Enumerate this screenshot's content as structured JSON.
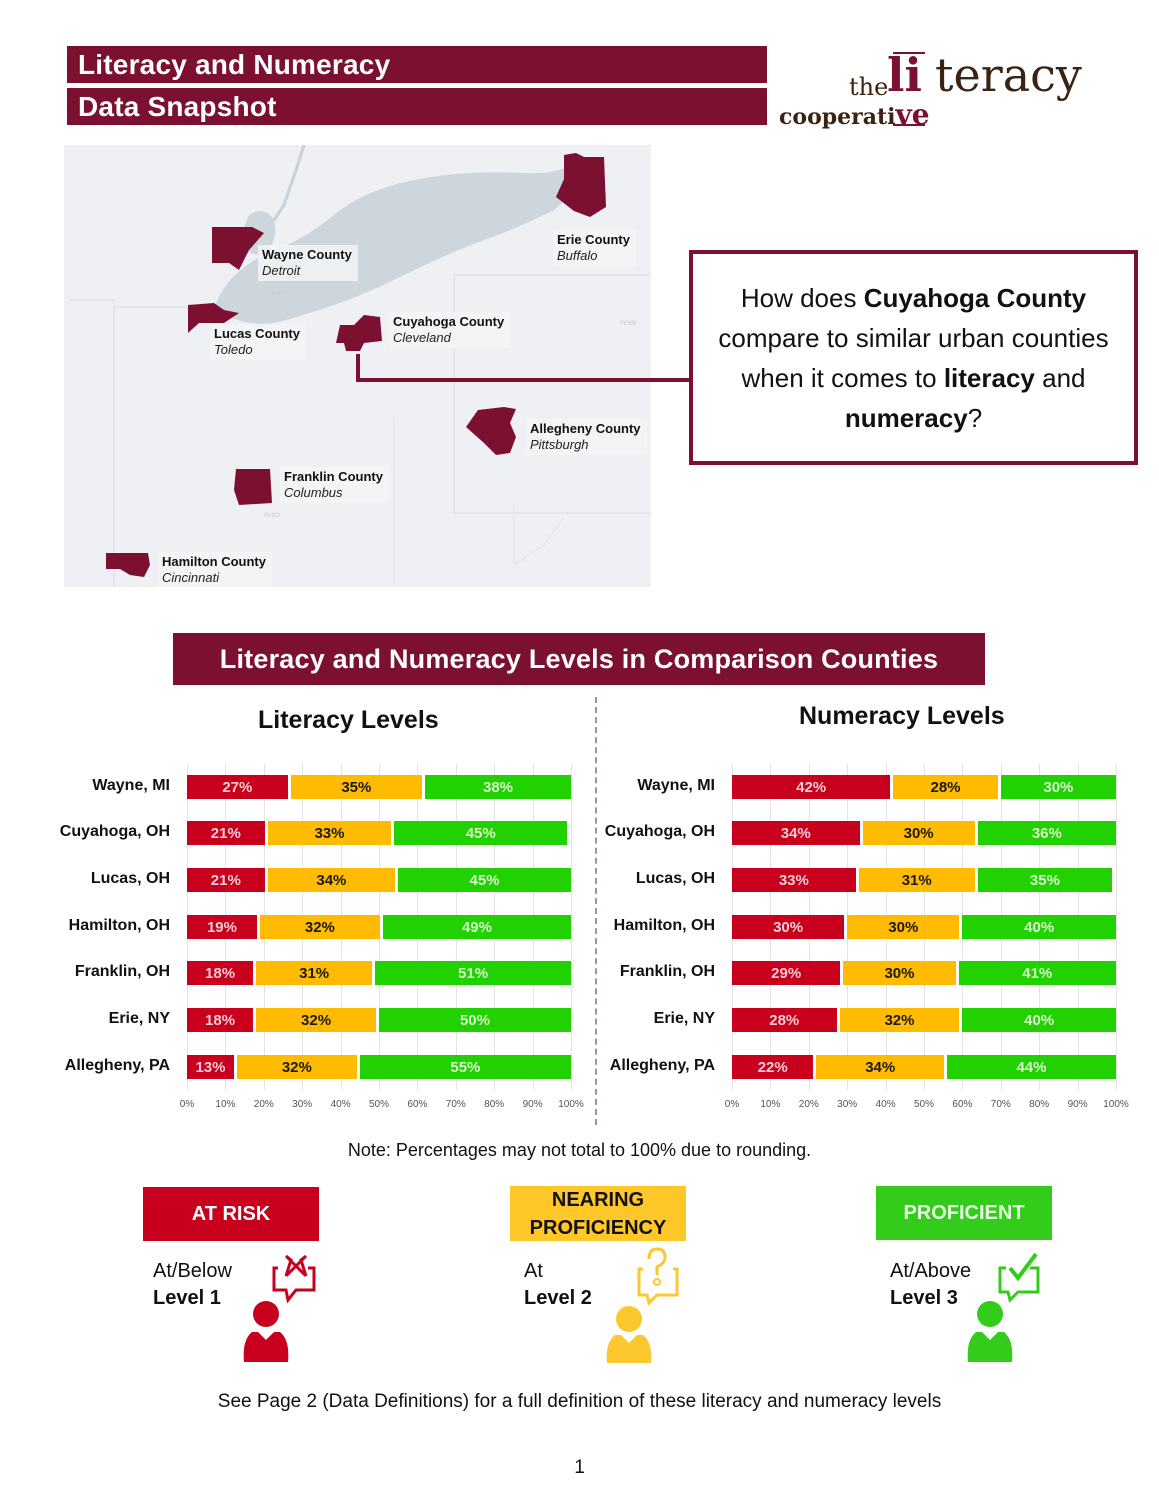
{
  "header": {
    "title_line1": "Literacy and Numeracy",
    "title_line2": "Data Snapshot"
  },
  "logo": {
    "the": "the",
    "li": "li",
    "teracy": "teracy",
    "cooperati": "cooperati",
    "ve": "ve"
  },
  "map": {
    "counties": [
      {
        "county": "Wayne County",
        "city": "Detroit"
      },
      {
        "county": "Erie County",
        "city": "Buffalo"
      },
      {
        "county": "Lucas County",
        "city": "Toledo"
      },
      {
        "county": "Cuyahoga County",
        "city": "Cleveland"
      },
      {
        "county": "Allegheny County",
        "city": "Pittsburgh"
      },
      {
        "county": "Franklin County",
        "city": "Columbus"
      },
      {
        "county": "Hamilton County",
        "city": "Cincinnati"
      }
    ],
    "faint_labels": [
      "OHIO",
      "OHIO",
      "PENN"
    ]
  },
  "callout": {
    "part1": "How does ",
    "bold1": "Cuyahoga County",
    "part2": " compare to similar urban counties when it comes to ",
    "bold2": "literacy",
    "part3": " and ",
    "bold3": "numeracy",
    "part4": "?"
  },
  "section": {
    "title": "Literacy and Numeracy Levels in Comparison Counties"
  },
  "colors": {
    "brand": "#7b1030",
    "at_risk": "#c8001e",
    "nearing": "#ffbb00",
    "proficient": "#22d200"
  },
  "chart_data": [
    {
      "type": "bar",
      "orientation": "horizontal-stacked-100",
      "title": "Literacy Levels",
      "categories": [
        "Wayne, MI",
        "Cuyahoga, OH",
        "Lucas, OH",
        "Hamilton, OH",
        "Franklin, OH",
        "Erie, NY",
        "Allegheny, PA"
      ],
      "series": [
        {
          "name": "At Risk",
          "values": [
            27,
            21,
            21,
            19,
            18,
            18,
            13
          ]
        },
        {
          "name": "Nearing Proficiency",
          "values": [
            35,
            33,
            34,
            32,
            31,
            32,
            32
          ]
        },
        {
          "name": "Proficient",
          "values": [
            38,
            45,
            45,
            49,
            51,
            50,
            55
          ]
        }
      ],
      "labels": [
        [
          "27%",
          "35%",
          "38%"
        ],
        [
          "21%",
          "33%",
          "45%"
        ],
        [
          "21%",
          "34%",
          "45%"
        ],
        [
          "19%",
          "32%",
          "49%"
        ],
        [
          "18%",
          "31%",
          "51%"
        ],
        [
          "18%",
          "32%",
          "50%"
        ],
        [
          "13%",
          "32%",
          "55%"
        ]
      ],
      "xticks": [
        "0%",
        "10%",
        "20%",
        "30%",
        "40%",
        "50%",
        "60%",
        "70%",
        "80%",
        "90%",
        "100%"
      ],
      "xlim": [
        0,
        100
      ],
      "xlabel": "",
      "ylabel": "",
      "grid": true
    },
    {
      "type": "bar",
      "orientation": "horizontal-stacked-100",
      "title": "Numeracy Levels",
      "categories": [
        "Wayne, MI",
        "Cuyahoga, OH",
        "Lucas, OH",
        "Hamilton, OH",
        "Franklin, OH",
        "Erie, NY",
        "Allegheny, PA"
      ],
      "series": [
        {
          "name": "At Risk",
          "values": [
            42,
            34,
            33,
            30,
            29,
            28,
            22
          ]
        },
        {
          "name": "Nearing Proficiency",
          "values": [
            28,
            30,
            31,
            30,
            30,
            32,
            34
          ]
        },
        {
          "name": "Proficient",
          "values": [
            30,
            36,
            35,
            40,
            41,
            40,
            44
          ]
        }
      ],
      "labels": [
        [
          "42%",
          "28%",
          "30%"
        ],
        [
          "34%",
          "30%",
          "36%"
        ],
        [
          "33%",
          "31%",
          "35%"
        ],
        [
          "30%",
          "30%",
          "40%"
        ],
        [
          "29%",
          "30%",
          "41%"
        ],
        [
          "28%",
          "32%",
          "40%"
        ],
        [
          "22%",
          "34%",
          "44%"
        ]
      ],
      "xticks": [
        "0%",
        "10%",
        "20%",
        "30%",
        "40%",
        "50%",
        "60%",
        "70%",
        "80%",
        "90%",
        "100%"
      ],
      "xlim": [
        0,
        100
      ],
      "xlabel": "",
      "ylabel": "",
      "grid": true
    }
  ],
  "note": "Note: Percentages may not total to 100% due to rounding.",
  "legend": [
    {
      "label": "AT RISK",
      "line1": "At/Below",
      "line2": "Level 1",
      "icon": "x-mark-speech-icon"
    },
    {
      "label": "NEARING PROFICIENCY",
      "label_line1": "NEARING",
      "label_line2": "PROFICIENCY",
      "line1": "At",
      "line2": "Level 2",
      "icon": "question-speech-icon"
    },
    {
      "label": "PROFICIENT",
      "line1": "At/Above",
      "line2": "Level 3",
      "icon": "check-speech-icon"
    }
  ],
  "footer": {
    "definitions_note": "See Page 2 (Data Definitions) for a full definition of these literacy and numeracy levels",
    "page_number": "1"
  }
}
